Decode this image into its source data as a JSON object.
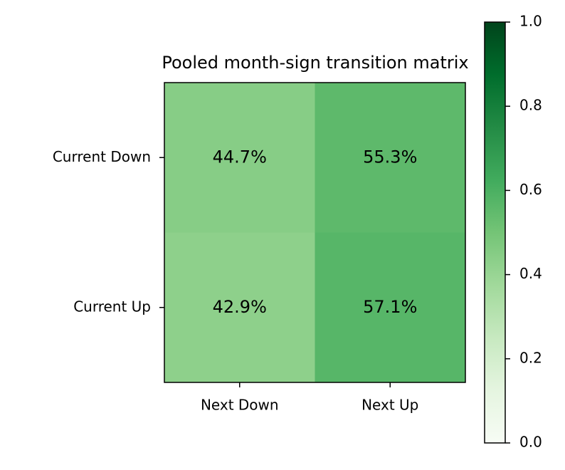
{
  "chart_data": {
    "type": "heatmap",
    "title": "Pooled month-sign transition matrix",
    "x_categories": [
      "Next Down",
      "Next Up"
    ],
    "y_categories": [
      "Current Down",
      "Current Up"
    ],
    "values": [
      [
        0.447,
        0.553
      ],
      [
        0.429,
        0.571
      ]
    ],
    "value_labels": [
      [
        "44.7%",
        "55.3%"
      ],
      [
        "42.9%",
        "57.1%"
      ]
    ],
    "colormap": "Greens",
    "zlim": [
      0,
      1
    ],
    "zticks": [
      {
        "value": 0,
        "label": "0.0"
      },
      0.2,
      0.4,
      0.6,
      0.8,
      {
        "value": 1,
        "label": "1.0"
      }
    ]
  }
}
